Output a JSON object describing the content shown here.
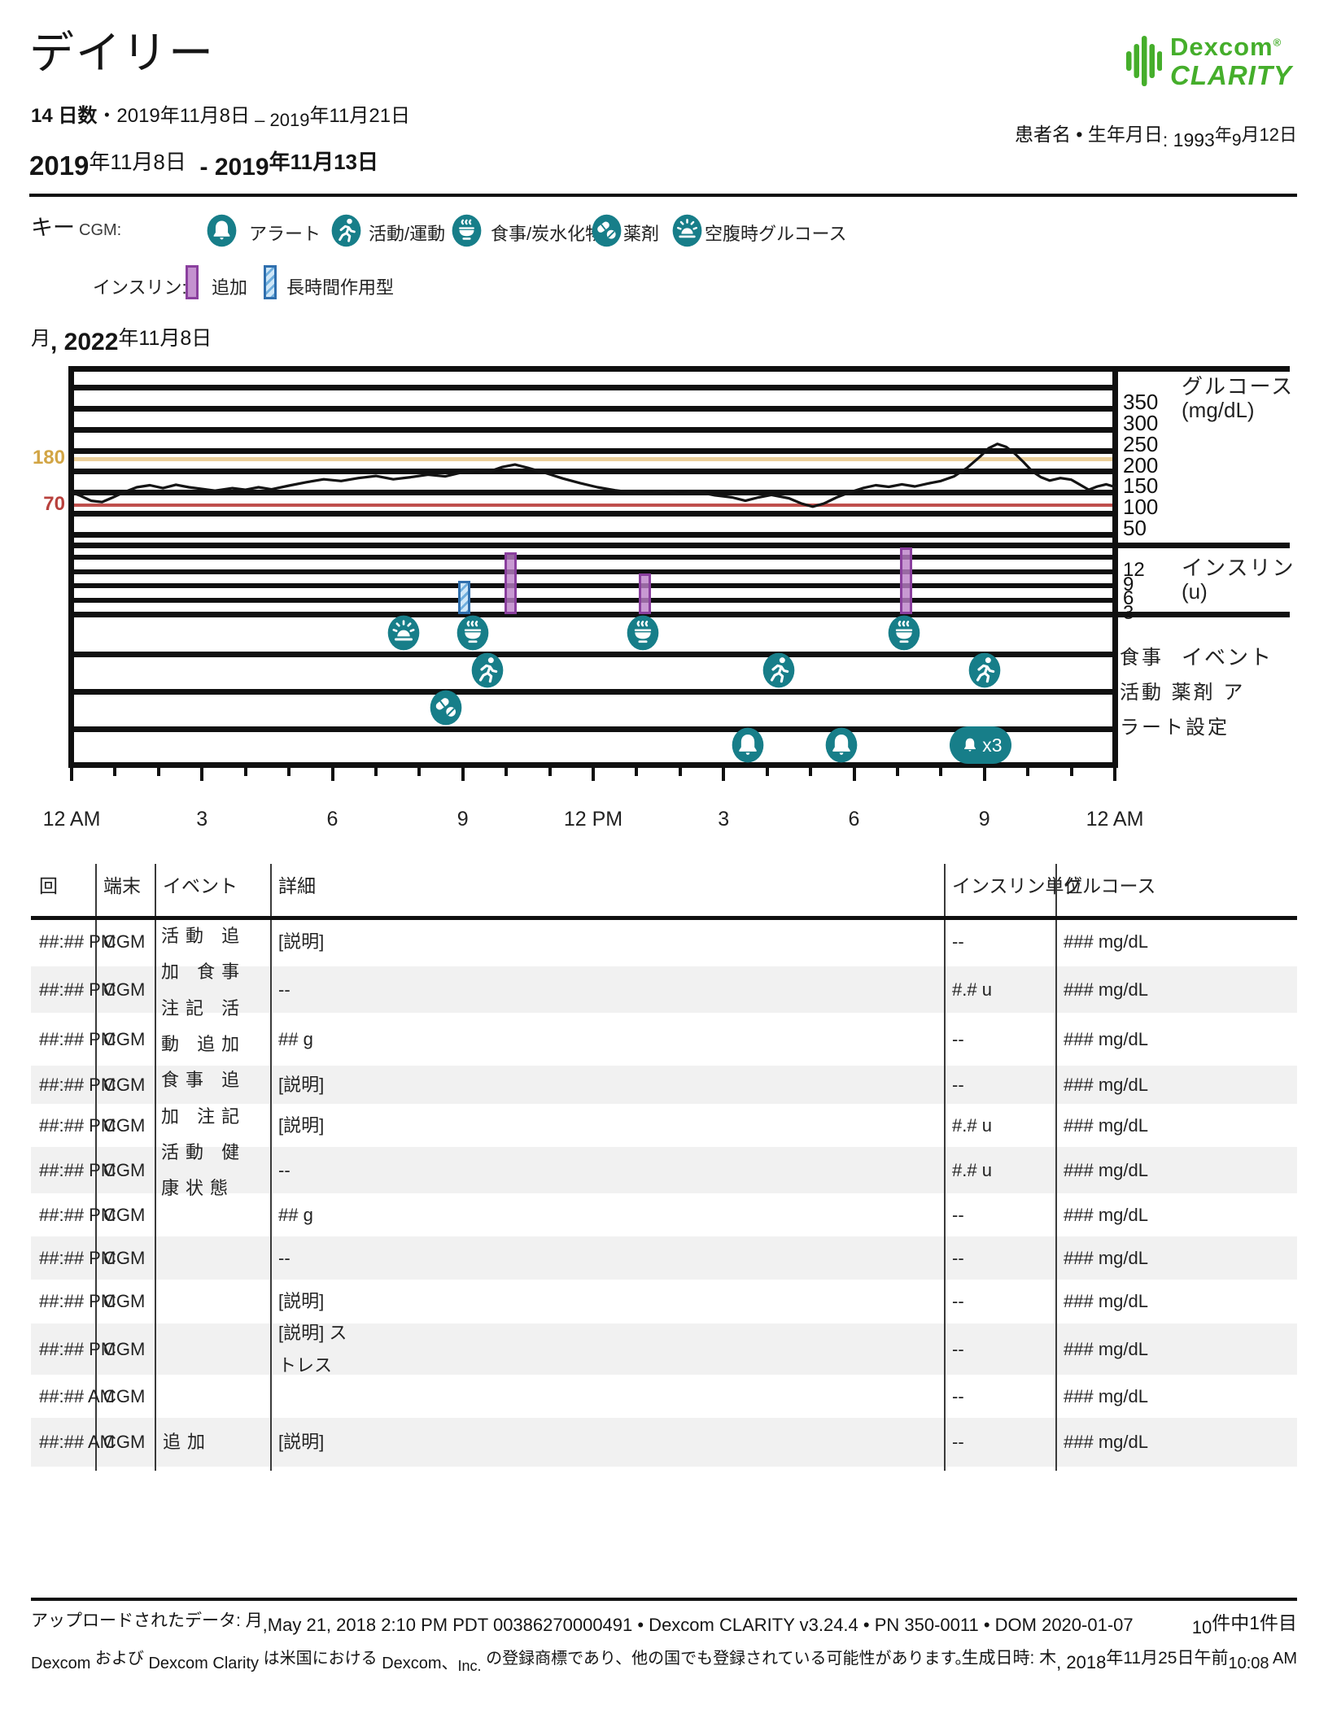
{
  "header": {
    "title": "デイリー",
    "meta": {
      "m1": "14 日数",
      "m2": "・2019年11月8日",
      "m3": " – 2019",
      "m4": "年11月21日"
    },
    "range": {
      "r1": "2019",
      "r2": "年11月8日",
      "r3": "  - 2019",
      "r4": "年11月13日"
    },
    "patient": {
      "a": "患者名 • 生年月日",
      "b": ": 1993",
      "c": "年",
      "d": "9",
      "e": "月12日"
    }
  },
  "logo": {
    "brand": "Dexcom",
    "reg": "®",
    "product": "CLARITY",
    "color": "#45ae2b"
  },
  "key": {
    "label": "キー",
    "cgm": "CGM:",
    "items": [
      {
        "icon": "bell-icon",
        "label": "アラート"
      },
      {
        "icon": "runner-icon",
        "label": "活動/運動"
      },
      {
        "icon": "meal-icon",
        "label": "食事/炭水化物"
      },
      {
        "icon": "pills-icon",
        "label": "薬剤"
      },
      {
        "icon": "sunrise-icon",
        "label": "空腹時グルコース"
      }
    ],
    "insulin_label": "インスリン:",
    "insulin_items": [
      {
        "swatch": "bolus",
        "label": "追加"
      },
      {
        "swatch": "long-acting",
        "label": "長時間作用型"
      }
    ]
  },
  "day": {
    "d1": "月",
    "d2": ", 2022",
    "d3": "年11月8日"
  },
  "chart_labels": {
    "glucose_title_1": "グルコース",
    "glucose_title_2": "(mg/dL)",
    "insulin_title_1": "インスリン",
    "insulin_title_2": "(u)",
    "events_title": "イベント",
    "event_row_lines": [
      "食事",
      "活動 薬剤 ア",
      "ラート設定"
    ],
    "threshold_high_label": "180",
    "threshold_low_label": "70"
  },
  "chart_data": {
    "type": "line",
    "title": "月, 2022年11月8日",
    "x_axis": {
      "labels": [
        "12 AM",
        "3",
        "6",
        "9",
        "12 PM",
        "3",
        "6",
        "9",
        "12 AM"
      ],
      "range_hours": [
        0,
        24
      ],
      "minor_tick_hours": 1
    },
    "glucose": {
      "ylabel": "グルコース (mg/dL)",
      "ylim": [
        0,
        400
      ],
      "ticks": [
        350,
        300,
        250,
        200,
        150,
        100,
        50
      ],
      "target_high": 180,
      "target_low": 70,
      "target_high_color": "#ecd09a",
      "target_low_color": "#bf4f4c",
      "series": [
        [
          0,
          100
        ],
        [
          0.2,
          92
        ],
        [
          0.45,
          80
        ],
        [
          0.7,
          77
        ],
        [
          0.95,
          88
        ],
        [
          1.2,
          100
        ],
        [
          1.5,
          112
        ],
        [
          1.8,
          117
        ],
        [
          2.1,
          110
        ],
        [
          2.4,
          118
        ],
        [
          2.7,
          112
        ],
        [
          3.0,
          108
        ],
        [
          3.3,
          104
        ],
        [
          3.7,
          110
        ],
        [
          4.0,
          106
        ],
        [
          4.3,
          112
        ],
        [
          4.6,
          107
        ],
        [
          5.0,
          116
        ],
        [
          5.4,
          124
        ],
        [
          5.8,
          131
        ],
        [
          6.2,
          127
        ],
        [
          6.6,
          134
        ],
        [
          7.0,
          139
        ],
        [
          7.4,
          131
        ],
        [
          7.8,
          136
        ],
        [
          8.2,
          142
        ],
        [
          8.6,
          138
        ],
        [
          9.0,
          148
        ],
        [
          9.3,
          152
        ],
        [
          9.6,
          149
        ],
        [
          9.9,
          160
        ],
        [
          10.2,
          166
        ],
        [
          10.5,
          158
        ],
        [
          10.9,
          146
        ],
        [
          11.3,
          133
        ],
        [
          11.7,
          122
        ],
        [
          12.1,
          112
        ],
        [
          12.5,
          105
        ],
        [
          12.9,
          100
        ],
        [
          13.3,
          97
        ],
        [
          13.7,
          103
        ],
        [
          14.0,
          96
        ],
        [
          14.4,
          101
        ],
        [
          14.8,
          93
        ],
        [
          15.2,
          88
        ],
        [
          15.5,
          80
        ],
        [
          15.8,
          88
        ],
        [
          16.1,
          94
        ],
        [
          16.5,
          86
        ],
        [
          16.8,
          73
        ],
        [
          17.05,
          66
        ],
        [
          17.3,
          73
        ],
        [
          17.6,
          88
        ],
        [
          17.9,
          100
        ],
        [
          18.2,
          110
        ],
        [
          18.5,
          117
        ],
        [
          18.8,
          113
        ],
        [
          19.1,
          119
        ],
        [
          19.4,
          114
        ],
        [
          19.7,
          121
        ],
        [
          20.0,
          127
        ],
        [
          20.3,
          138
        ],
        [
          20.6,
          158
        ],
        [
          20.9,
          185
        ],
        [
          21.1,
          205
        ],
        [
          21.3,
          215
        ],
        [
          21.5,
          208
        ],
        [
          21.7,
          192
        ],
        [
          21.9,
          172
        ],
        [
          22.1,
          150
        ],
        [
          22.3,
          136
        ],
        [
          22.5,
          128
        ],
        [
          22.75,
          134
        ],
        [
          23.0,
          130
        ],
        [
          23.2,
          118
        ],
        [
          23.4,
          106
        ],
        [
          23.6,
          114
        ],
        [
          23.8,
          119
        ],
        [
          24,
          113
        ]
      ]
    },
    "insulin": {
      "ylabel": "インスリン (u)",
      "ticks": [
        12,
        9,
        6,
        3
      ],
      "bars": [
        {
          "hour": 9.05,
          "units": 7,
          "type": "long-acting"
        },
        {
          "hour": 10.1,
          "units": 13,
          "type": "bolus"
        },
        {
          "hour": 13.2,
          "units": 8.5,
          "type": "bolus"
        },
        {
          "hour": 19.2,
          "units": 14,
          "type": "bolus"
        }
      ],
      "bolus_color": "#b07ec0",
      "long_acting_color": "#bcd9f0"
    },
    "events": {
      "rows": [
        "食事",
        "活動",
        "薬剤",
        "アラート設定"
      ],
      "fasting_glucose_hours": [
        7.64
      ],
      "meal_hours": [
        9.23,
        13.14,
        19.15
      ],
      "activity_hours": [
        9.57,
        16.27,
        21.0
      ],
      "medication_hours": [
        8.61
      ],
      "alert_hours": [
        15.56,
        17.71
      ],
      "alert_multi": {
        "hour": 20.9,
        "count": "x3"
      }
    },
    "accent_teal": "#177e89"
  },
  "table": {
    "headers": [
      "回",
      "端末",
      "イベント",
      "詳細",
      "インスリン単位",
      "グルコース"
    ],
    "event_overflow_lines": [
      "活動 追",
      "加 食事",
      "注記 活",
      "動 追加",
      "食事 追",
      "加 注記",
      "活動 健",
      "康状態"
    ],
    "rows": [
      {
        "time": "##:## PM",
        "device": "CGM",
        "event": "",
        "detail": "[説明]",
        "insulin": "--",
        "glucose": "### mg/dL"
      },
      {
        "time": "##:## PM",
        "device": "CGM",
        "event": "",
        "detail": "--",
        "insulin": "#.# u",
        "glucose": "### mg/dL"
      },
      {
        "time": "##:## PM",
        "device": "CGM",
        "event": "",
        "detail": "## g",
        "insulin": "--",
        "glucose": "### mg/dL"
      },
      {
        "time": "##:## PM",
        "device": "CGM",
        "event": "",
        "detail": "[説明]",
        "insulin": "--",
        "glucose": "### mg/dL"
      },
      {
        "time": "##:## PM",
        "device": "CGM",
        "event": "",
        "detail": "[説明]",
        "insulin": "#.# u",
        "glucose": "### mg/dL"
      },
      {
        "time": "##:## PM",
        "device": "CGM",
        "event": "",
        "detail": "--",
        "insulin": "#.# u",
        "glucose": "### mg/dL"
      },
      {
        "time": "##:## PM",
        "device": "CGM",
        "event": "",
        "detail": "## g",
        "insulin": "--",
        "glucose": "### mg/dL"
      },
      {
        "time": "##:## PM",
        "device": "CGM",
        "event": "",
        "detail": "--",
        "insulin": "--",
        "glucose": "### mg/dL"
      },
      {
        "time": "##:## PM",
        "device": "CGM",
        "event": "",
        "detail": "[説明]",
        "insulin": "--",
        "glucose": "### mg/dL"
      },
      {
        "time": "##:## PM",
        "device": "CGM",
        "event": "",
        "detail": [
          "[説明] ス",
          "トレス"
        ],
        "insulin": "--",
        "glucose": "### mg/dL"
      },
      {
        "time": "##:## AM",
        "device": "CGM",
        "event": "",
        "detail": "",
        "insulin": "--",
        "glucose": "### mg/dL"
      },
      {
        "time": "##:## AM",
        "device": "CGM",
        "event": "追加",
        "detail": "[説明]",
        "insulin": "--",
        "glucose": "### mg/dL"
      }
    ]
  },
  "footer": {
    "line1_a": "アップロードされたデータ: 月",
    "line1_b": ",May 21, 2018 2:10 PM PDT 00386270000491 • Dexcom CLARITY v3.24.4 • PN 350-0011 • DOM 2020-01-07",
    "page_count_a": "10",
    "page_count_b": "件中1件目",
    "line2_s1": "Dexcom",
    "line2_s2": " および ",
    "line2_s3": "Dexcom Clarity",
    "line2_s4": " は米国における ",
    "line2_s5": "Dexcom、",
    "line2_s6": "Inc.",
    "line2_s7": " の登録商標であり、他の国でも登録されている可能性があります。",
    "gen_a": "生成日時: 木",
    "gen_b": ", 2018",
    "gen_c": "年11月25日午前",
    "gen_d": "10:08",
    "gen_e": " AM"
  }
}
